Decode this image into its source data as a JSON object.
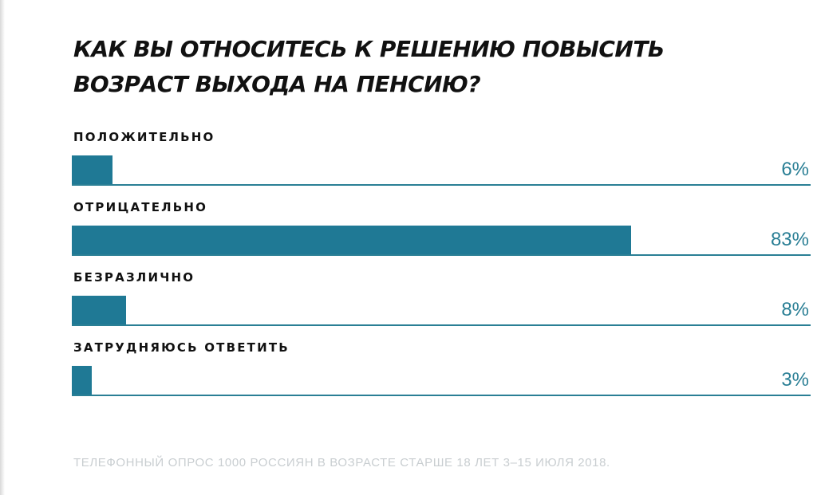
{
  "chart_data": {
    "type": "bar",
    "orientation": "horizontal",
    "title": "КАК ВЫ ОТНОСИТЕСЬ К РЕШЕНИЮ ПОВЫСИТЬ ВОЗРАСТ ВЫХОДА НА ПЕНСИЮ?",
    "title_lines": [
      "КАК ВЫ ОТНОСИТЕСЬ К РЕШЕНИЮ ПОВЫСИТЬ",
      "ВОЗРАСТ ВЫХОДА НА ПЕНСИЮ?"
    ],
    "categories": [
      "ПОЛОЖИТЕЛЬНО",
      "ОТРИЦАТЕЛЬНО",
      "БЕЗРАЗЛИЧНО",
      "ЗАТРУДНЯЮСЬ ОТВЕТИТЬ"
    ],
    "values": [
      6,
      83,
      8,
      3
    ],
    "value_labels": [
      "6%",
      "83%",
      "8%",
      "3%"
    ],
    "unit": "%",
    "xlim": [
      0,
      100
    ],
    "grid": false,
    "legend": "none",
    "colors": {
      "bar": "#1f7995",
      "value_text": "#2a7f95",
      "footnote": "#c9ced1"
    },
    "source": "ТЕЛЕФОННЫЙ ОПРОС 1000 РОССИЯН В ВОЗРАСТЕ СТАРШЕ 18 ЛЕТ 3–15 ИЮЛЯ 2018."
  }
}
